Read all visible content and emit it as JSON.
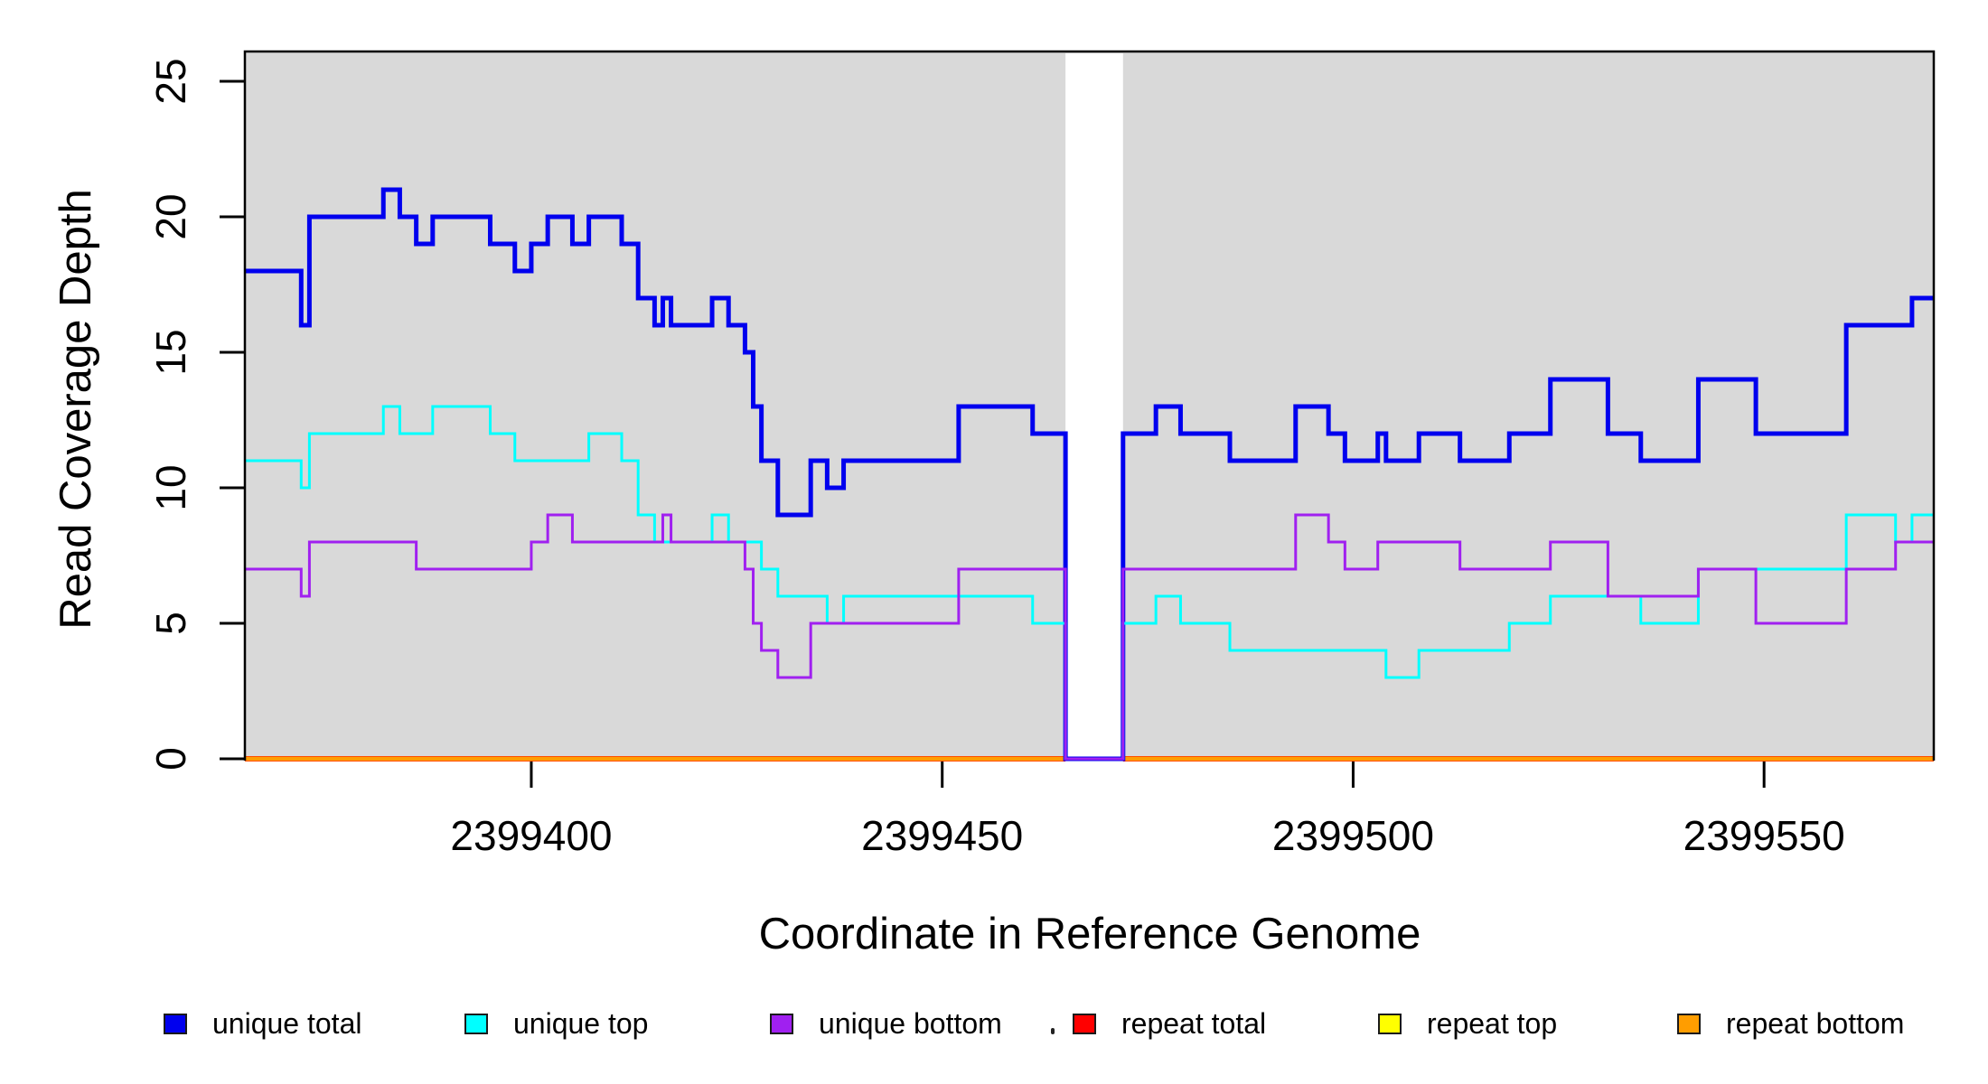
{
  "chart_data": {
    "type": "line",
    "subtype": "step-coverage",
    "title": "",
    "xlabel": "Coordinate in Reference Genome",
    "ylabel": "Read Coverage Depth",
    "xlim": [
      2399365.15,
      2399570.65
    ],
    "ylim": [
      0,
      26.1
    ],
    "xticks": [
      2399400,
      2399450,
      2399500,
      2399550
    ],
    "xtick_labels": [
      "2399400",
      "2399450",
      "2399500",
      "2399550"
    ],
    "yticks": [
      0,
      5,
      10,
      15,
      20,
      25
    ],
    "ytick_labels": [
      "0",
      "5",
      "10",
      "15",
      "20",
      "25"
    ],
    "grid": false,
    "plot_background": "#d9d9d9",
    "masked_region": {
      "x_start": 2399465,
      "x_end": 2399472,
      "color": "#ffffff",
      "note": "all coverage drops to 0 in this white band"
    },
    "legend_position": "bottom",
    "legend": [
      {
        "series": "unique_total",
        "label": "unique total"
      },
      {
        "series": "unique_top",
        "label": "unique top"
      },
      {
        "series": "unique_bottom",
        "label": "unique bottom"
      },
      {
        "series": "repeat_total",
        "label": "repeat total"
      },
      {
        "series": "repeat_top",
        "label": "repeat top"
      },
      {
        "series": "repeat_bottom",
        "label": "repeat bottom"
      }
    ],
    "series": [
      {
        "name": "repeat_total",
        "label": "repeat total",
        "color": "#FF0000",
        "line_width": 6,
        "segments": [
          [
            2399365.15,
            2399465,
            0
          ],
          [
            2399472,
            2399570.65,
            0
          ]
        ]
      },
      {
        "name": "repeat_top",
        "label": "repeat top",
        "color": "#FFFF00",
        "line_width": 5,
        "segments": [
          [
            2399365.15,
            2399465,
            0
          ],
          [
            2399472,
            2399570.65,
            0
          ]
        ]
      },
      {
        "name": "repeat_bottom",
        "label": "repeat bottom",
        "color": "#FF9D00",
        "line_width": 5,
        "segments": [
          [
            2399365.15,
            2399465,
            0
          ],
          [
            2399472,
            2399570.65,
            0
          ]
        ]
      },
      {
        "name": "unique_total",
        "label": "unique total",
        "color": "#0000EE",
        "line_width": 5,
        "segments": [
          [
            2399365.15,
            2399372,
            18
          ],
          [
            2399372,
            2399373,
            16
          ],
          [
            2399373,
            2399382,
            20
          ],
          [
            2399382,
            2399384,
            21
          ],
          [
            2399384,
            2399386,
            20
          ],
          [
            2399386,
            2399388,
            19
          ],
          [
            2399388,
            2399395,
            20
          ],
          [
            2399395,
            2399398,
            19
          ],
          [
            2399398,
            2399400,
            18
          ],
          [
            2399400,
            2399402,
            19
          ],
          [
            2399402,
            2399405,
            20
          ],
          [
            2399405,
            2399407,
            19
          ],
          [
            2399407,
            2399411,
            20
          ],
          [
            2399411,
            2399413,
            19
          ],
          [
            2399413,
            2399415,
            17
          ],
          [
            2399415,
            2399416,
            16
          ],
          [
            2399416,
            2399417,
            17
          ],
          [
            2399417,
            2399422,
            16
          ],
          [
            2399422,
            2399424,
            17
          ],
          [
            2399424,
            2399426,
            16
          ],
          [
            2399426,
            2399427,
            15
          ],
          [
            2399427,
            2399428,
            13
          ],
          [
            2399428,
            2399430,
            11
          ],
          [
            2399430,
            2399434,
            9
          ],
          [
            2399434,
            2399436,
            11
          ],
          [
            2399436,
            2399438,
            10
          ],
          [
            2399438,
            2399452,
            11
          ],
          [
            2399452,
            2399461,
            13
          ],
          [
            2399461,
            2399465,
            12
          ],
          [
            2399465,
            2399472,
            0
          ],
          [
            2399472,
            2399476,
            12
          ],
          [
            2399476,
            2399479,
            13
          ],
          [
            2399479,
            2399485,
            12
          ],
          [
            2399485,
            2399493,
            11
          ],
          [
            2399493,
            2399497,
            13
          ],
          [
            2399497,
            2399499,
            12
          ],
          [
            2399499,
            2399503,
            11
          ],
          [
            2399503,
            2399504,
            12
          ],
          [
            2399504,
            2399508,
            11
          ],
          [
            2399508,
            2399513,
            12
          ],
          [
            2399513,
            2399519,
            11
          ],
          [
            2399519,
            2399524,
            12
          ],
          [
            2399524,
            2399531,
            14
          ],
          [
            2399531,
            2399535,
            12
          ],
          [
            2399535,
            2399542,
            11
          ],
          [
            2399542,
            2399549,
            14
          ],
          [
            2399549,
            2399560,
            12
          ],
          [
            2399560,
            2399568,
            16
          ],
          [
            2399568,
            2399570.65,
            17
          ]
        ]
      },
      {
        "name": "unique_top",
        "label": "unique top",
        "color": "#00FFFF",
        "line_width": 3,
        "segments": [
          [
            2399365.15,
            2399372,
            11
          ],
          [
            2399372,
            2399373,
            10
          ],
          [
            2399373,
            2399382,
            12
          ],
          [
            2399382,
            2399384,
            13
          ],
          [
            2399384,
            2399388,
            12
          ],
          [
            2399388,
            2399395,
            13
          ],
          [
            2399395,
            2399398,
            12
          ],
          [
            2399398,
            2399407,
            11
          ],
          [
            2399407,
            2399411,
            12
          ],
          [
            2399411,
            2399413,
            11
          ],
          [
            2399413,
            2399415,
            9
          ],
          [
            2399415,
            2399422,
            8
          ],
          [
            2399422,
            2399424,
            9
          ],
          [
            2399424,
            2399428,
            8
          ],
          [
            2399428,
            2399430,
            7
          ],
          [
            2399430,
            2399436,
            6
          ],
          [
            2399436,
            2399438,
            5
          ],
          [
            2399438,
            2399461,
            6
          ],
          [
            2399461,
            2399465,
            5
          ],
          [
            2399465,
            2399472,
            0
          ],
          [
            2399472,
            2399476,
            5
          ],
          [
            2399476,
            2399479,
            6
          ],
          [
            2399479,
            2399485,
            5
          ],
          [
            2399485,
            2399504,
            4
          ],
          [
            2399504,
            2399508,
            3
          ],
          [
            2399508,
            2399519,
            4
          ],
          [
            2399519,
            2399524,
            5
          ],
          [
            2399524,
            2399535,
            6
          ],
          [
            2399535,
            2399542,
            5
          ],
          [
            2399542,
            2399560,
            7
          ],
          [
            2399560,
            2399566,
            9
          ],
          [
            2399566,
            2399568,
            8
          ],
          [
            2399568,
            2399570.65,
            9
          ]
        ]
      },
      {
        "name": "unique_bottom",
        "label": "unique bottom",
        "color": "#A020F0",
        "line_width": 3,
        "segments": [
          [
            2399365.15,
            2399372,
            7
          ],
          [
            2399372,
            2399373,
            6
          ],
          [
            2399373,
            2399386,
            8
          ],
          [
            2399386,
            2399400,
            7
          ],
          [
            2399400,
            2399402,
            8
          ],
          [
            2399402,
            2399405,
            9
          ],
          [
            2399405,
            2399416,
            8
          ],
          [
            2399416,
            2399417,
            9
          ],
          [
            2399417,
            2399426,
            8
          ],
          [
            2399426,
            2399427,
            7
          ],
          [
            2399427,
            2399428,
            5
          ],
          [
            2399428,
            2399430,
            4
          ],
          [
            2399430,
            2399434,
            3
          ],
          [
            2399434,
            2399452,
            5
          ],
          [
            2399452,
            2399465,
            7
          ],
          [
            2399465,
            2399472,
            0
          ],
          [
            2399472,
            2399493,
            7
          ],
          [
            2399493,
            2399497,
            9
          ],
          [
            2399497,
            2399499,
            8
          ],
          [
            2399499,
            2399503,
            7
          ],
          [
            2399503,
            2399513,
            8
          ],
          [
            2399513,
            2399524,
            7
          ],
          [
            2399524,
            2399531,
            8
          ],
          [
            2399531,
            2399542,
            6
          ],
          [
            2399542,
            2399549,
            7
          ],
          [
            2399549,
            2399560,
            5
          ],
          [
            2399560,
            2399566,
            7
          ],
          [
            2399566,
            2399570.65,
            8
          ]
        ]
      }
    ]
  }
}
